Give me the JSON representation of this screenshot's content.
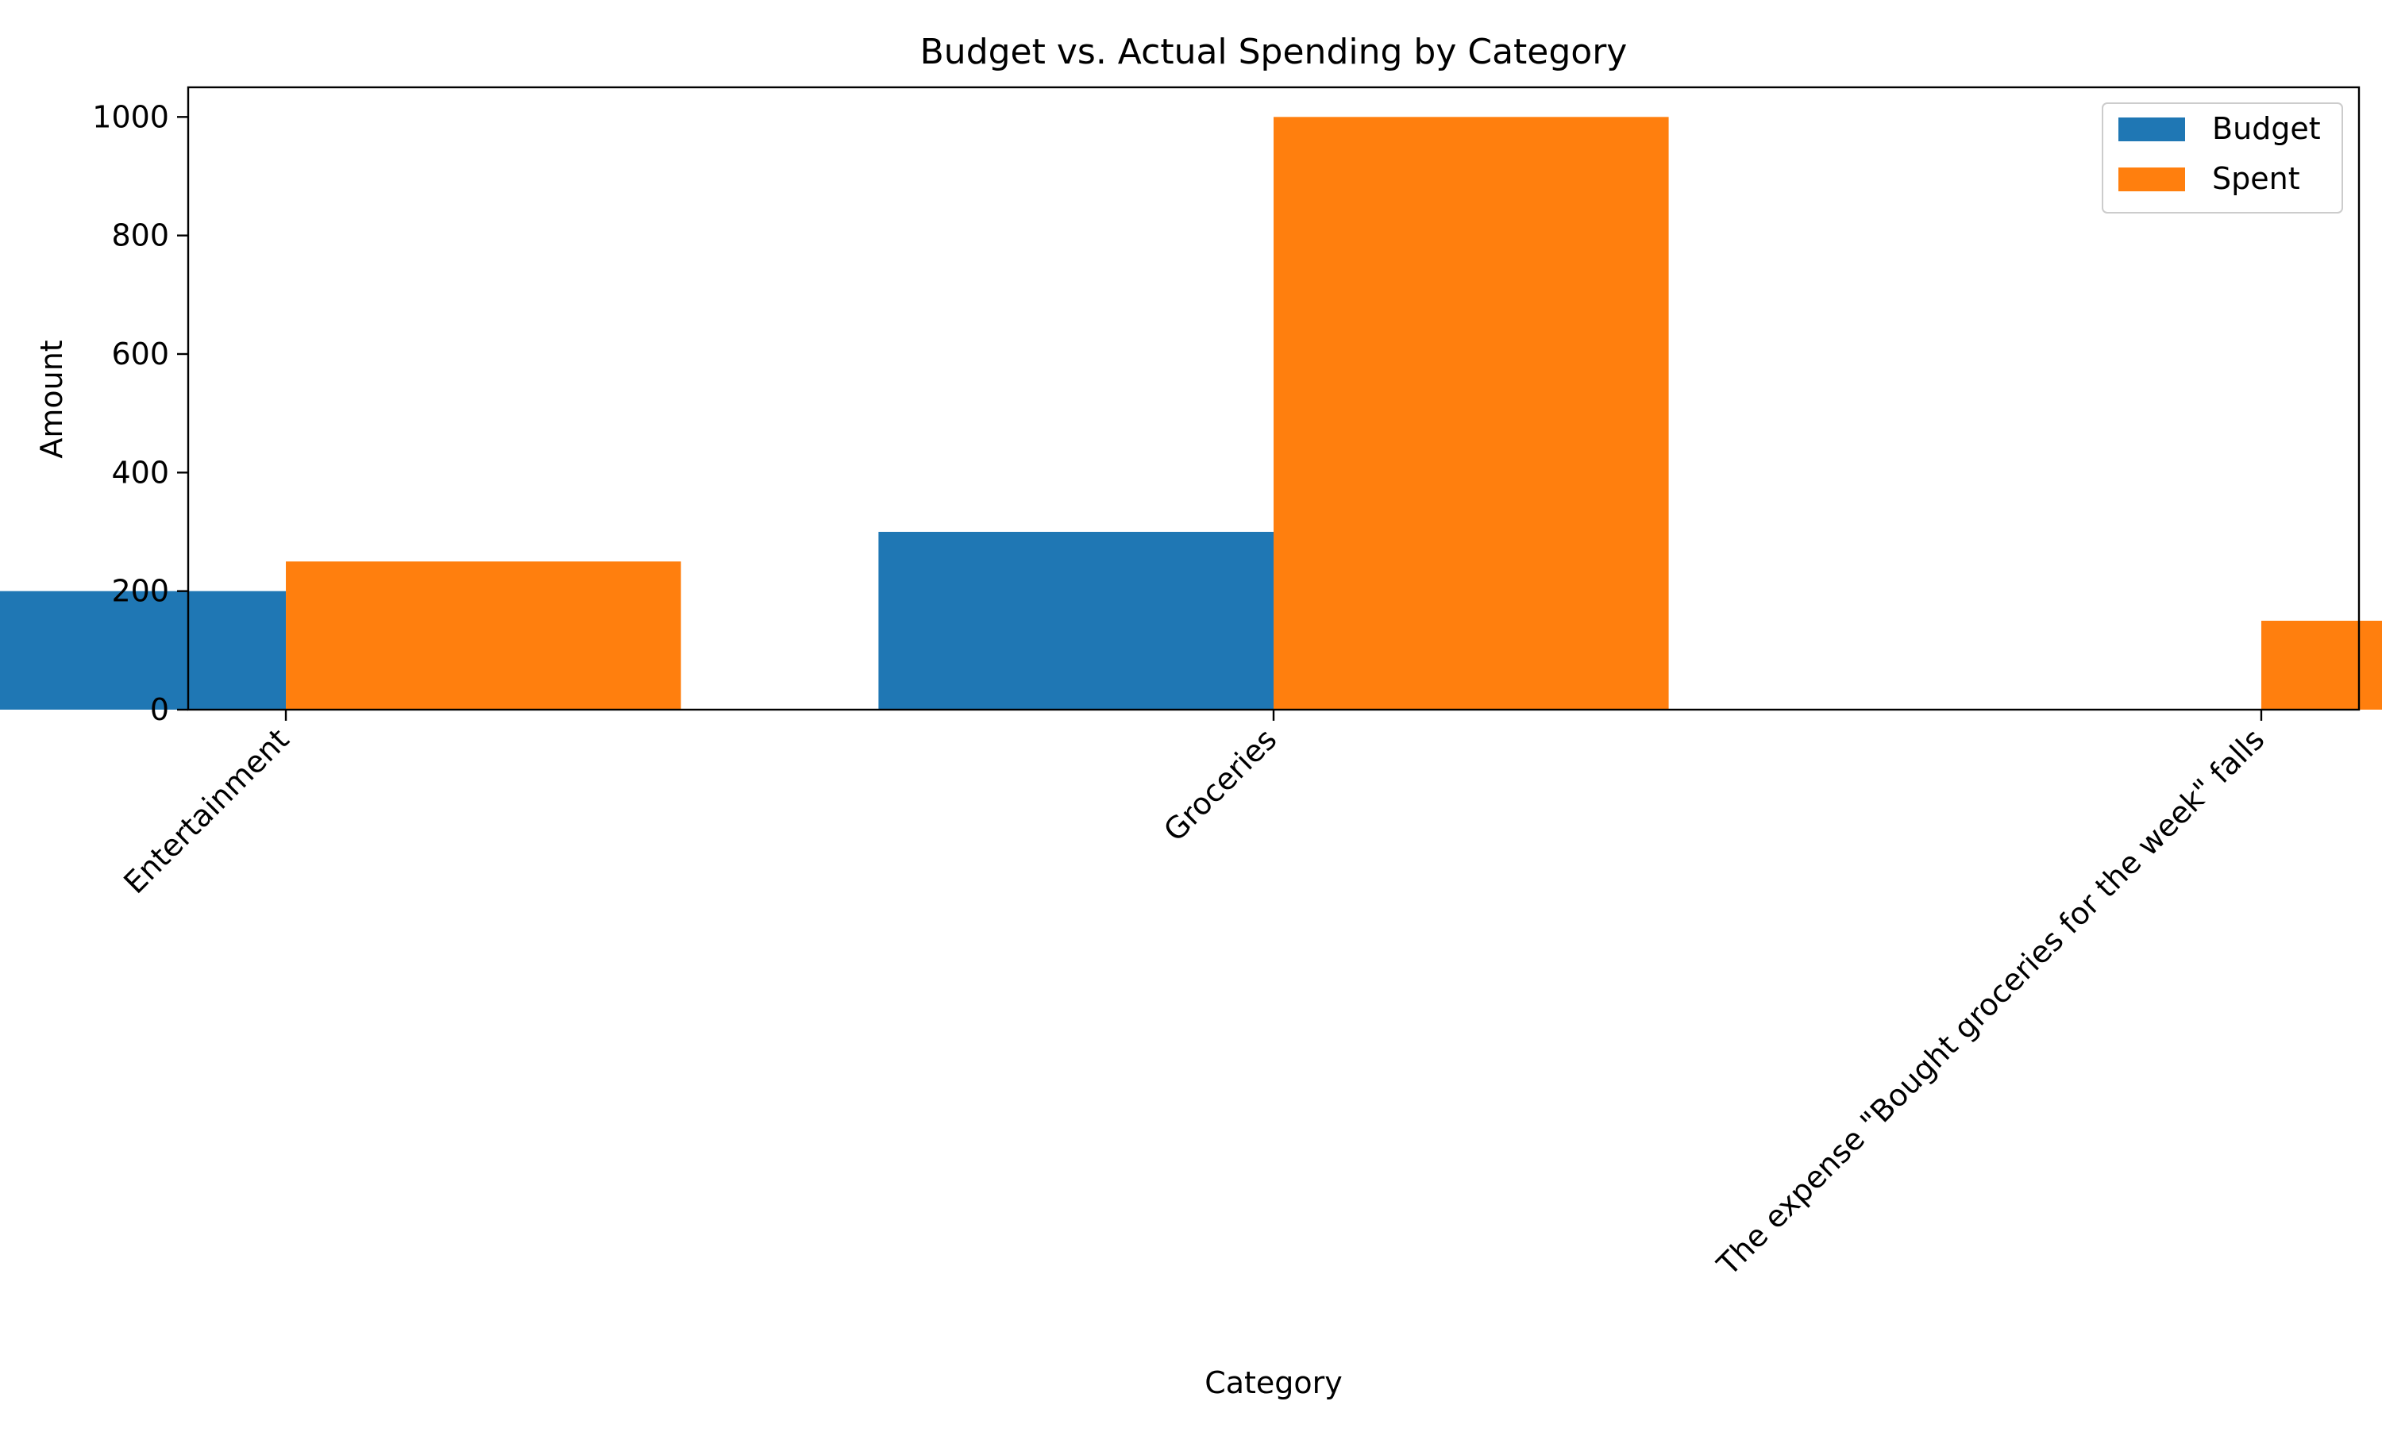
{
  "chart_data": {
    "type": "bar",
    "title": "Budget vs. Actual Spending by Category",
    "xlabel": "Category",
    "ylabel": "Amount",
    "categories": [
      "Entertainment",
      "Groceries",
      "The expense \"Bought groceries for the week\" falls"
    ],
    "series": [
      {
        "name": "Budget",
        "values": [
          200,
          300,
          0
        ],
        "color": "#1f77b4"
      },
      {
        "name": "Spent",
        "values": [
          250,
          1000,
          150
        ],
        "color": "#ff7f0e"
      }
    ],
    "ylim": [
      0,
      1050
    ],
    "yticks": [
      0,
      200,
      400,
      600,
      800,
      1000
    ],
    "grid": false,
    "legend": "top-right"
  }
}
